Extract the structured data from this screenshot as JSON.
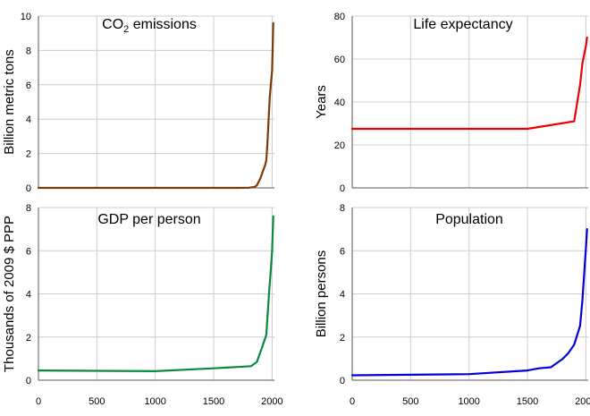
{
  "chart_data": [
    {
      "type": "line",
      "title": "CO2 emissions",
      "ylabel": "Billion metric tons",
      "xlim": [
        0,
        2020
      ],
      "ylim": [
        0,
        10
      ],
      "xticks": [
        0,
        500,
        1000,
        1500,
        2000
      ],
      "yticks": [
        0,
        2,
        4,
        6,
        8,
        10
      ],
      "color": "#7b3a06",
      "grid": true,
      "series": [
        {
          "x": [
            0,
            1700,
            1800,
            1850,
            1870,
            1900,
            1920,
            1940,
            1950,
            1960,
            1970,
            1980,
            1990,
            2000,
            2010
          ],
          "y": [
            0,
            0,
            0.01,
            0.05,
            0.15,
            0.55,
            0.95,
            1.3,
            1.6,
            2.6,
            4.0,
            5.3,
            6.1,
            6.8,
            9.6
          ]
        }
      ]
    },
    {
      "type": "line",
      "title": "Life expectancy",
      "ylabel": "Years",
      "xlim": [
        0,
        2020
      ],
      "ylim": [
        0,
        80
      ],
      "xticks": [
        0,
        500,
        1000,
        1500,
        2000
      ],
      "yticks": [
        0,
        20,
        40,
        60,
        80
      ],
      "color": "#ee0000",
      "grid": true,
      "series": [
        {
          "x": [
            0,
            1500,
            1900,
            1950,
            1970,
            2000,
            2010
          ],
          "y": [
            27.5,
            27.5,
            31,
            48,
            58,
            66,
            70
          ]
        }
      ]
    },
    {
      "type": "line",
      "title": "GDP per person",
      "ylabel": "Thousands of 2009 $ PPP",
      "xlim": [
        0,
        2020
      ],
      "ylim": [
        0,
        8
      ],
      "xticks": [
        0,
        500,
        1000,
        1500,
        2000
      ],
      "yticks": [
        0,
        2,
        4,
        6,
        8
      ],
      "xticklabels_shown": true,
      "color": "#0a8a3c",
      "grid": true,
      "series": [
        {
          "x": [
            0,
            1000,
            1500,
            1820,
            1870,
            1913,
            1950,
            1973,
            1990,
            2000,
            2010
          ],
          "y": [
            0.45,
            0.42,
            0.55,
            0.65,
            0.85,
            1.5,
            2.1,
            4.0,
            5.2,
            6.0,
            7.6
          ]
        }
      ]
    },
    {
      "type": "line",
      "title": "Population",
      "ylabel": "Billion persons",
      "xlim": [
        0,
        2020
      ],
      "ylim": [
        0,
        8
      ],
      "xticks": [
        0,
        500,
        1000,
        1500,
        2000
      ],
      "yticks": [
        0,
        2,
        4,
        6,
        8
      ],
      "xticklabels_shown": true,
      "color": "#0000dd",
      "grid": true,
      "series": [
        {
          "x": [
            0,
            1000,
            1500,
            1600,
            1700,
            1800,
            1850,
            1900,
            1950,
            1970,
            1990,
            2000,
            2010
          ],
          "y": [
            0.23,
            0.28,
            0.45,
            0.55,
            0.6,
            0.98,
            1.26,
            1.65,
            2.52,
            3.7,
            5.3,
            6.1,
            7.0
          ]
        }
      ]
    }
  ]
}
